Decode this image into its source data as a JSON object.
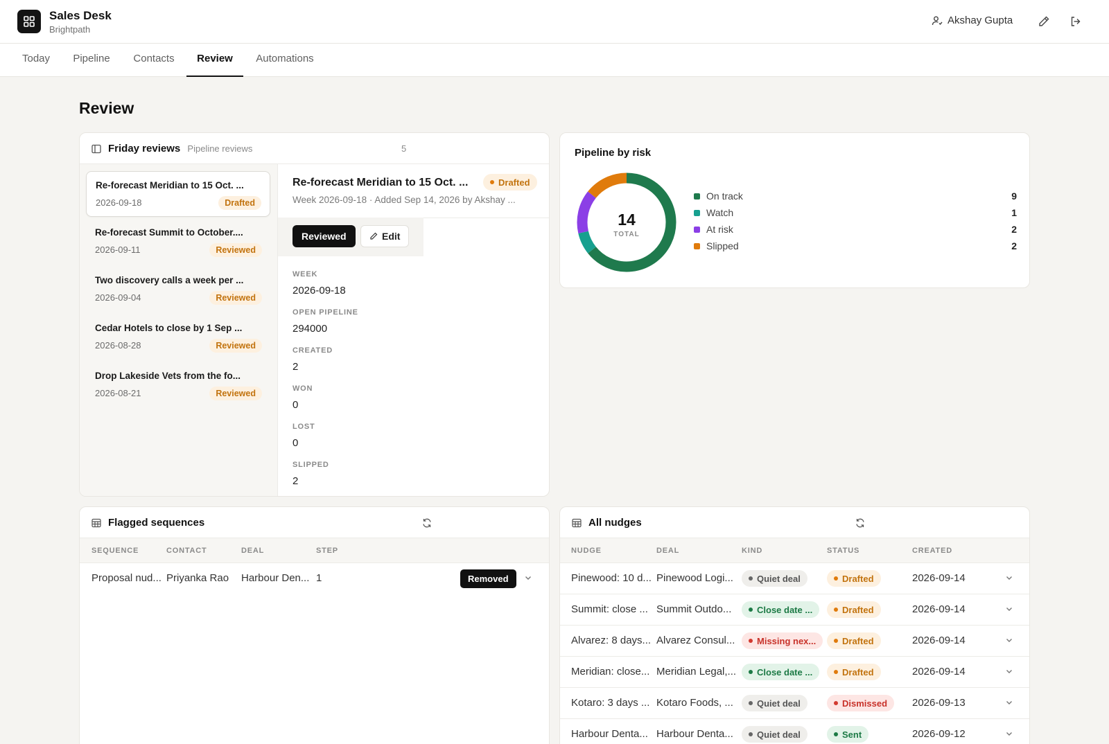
{
  "app": {
    "title": "Sales Desk",
    "subtitle": "Brightpath"
  },
  "user": {
    "name": "Akshay Gupta"
  },
  "tabs": [
    {
      "label": "Today"
    },
    {
      "label": "Pipeline"
    },
    {
      "label": "Contacts"
    },
    {
      "label": "Review",
      "active": true
    },
    {
      "label": "Automations"
    }
  ],
  "page": {
    "title": "Review"
  },
  "friday_reviews": {
    "title": "Friday reviews",
    "subtitle": "Pipeline reviews",
    "count": "5",
    "items": [
      {
        "title": "Re-forecast Meridian to 15 Oct. ...",
        "date": "2026-09-18",
        "status": "Drafted"
      },
      {
        "title": "Re-forecast Summit to October....",
        "date": "2026-09-11",
        "status": "Reviewed"
      },
      {
        "title": "Two discovery calls a week per ...",
        "date": "2026-09-04",
        "status": "Reviewed"
      },
      {
        "title": "Cedar Hotels to close by 1 Sep ...",
        "date": "2026-08-28",
        "status": "Reviewed"
      },
      {
        "title": "Drop Lakeside Vets from the fo...",
        "date": "2026-08-21",
        "status": "Reviewed"
      }
    ],
    "detail": {
      "title": "Re-forecast Meridian to 15 Oct. ...",
      "status": "Drafted",
      "subtitle": "Week 2026-09-18  ·  Added Sep 14, 2026 by Akshay ...",
      "reviewed_label": "Reviewed",
      "edit_label": "Edit",
      "fields": [
        {
          "label": "WEEK",
          "value": "2026-09-18"
        },
        {
          "label": "OPEN PIPELINE",
          "value": "294000"
        },
        {
          "label": "CREATED",
          "value": "2"
        },
        {
          "label": "WON",
          "value": "0"
        },
        {
          "label": "LOST",
          "value": "0"
        },
        {
          "label": "SLIPPED",
          "value": "2"
        }
      ]
    }
  },
  "pipeline_risk": {
    "title": "Pipeline by risk",
    "total": "14",
    "total_label": "TOTAL",
    "segments": [
      {
        "label": "On track",
        "value": 9,
        "color": "#1f7a4d"
      },
      {
        "label": "Watch",
        "value": 1,
        "color": "#17a08f"
      },
      {
        "label": "At risk",
        "value": 2,
        "color": "#8b3fe6"
      },
      {
        "label": "Slipped",
        "value": 2,
        "color": "#e07b0c"
      }
    ]
  },
  "flagged": {
    "title": "Flagged sequences",
    "columns": [
      "SEQUENCE",
      "CONTACT",
      "DEAL",
      "STEP"
    ],
    "rows": [
      {
        "sequence": "Proposal nud...",
        "contact": "Priyanka Rao",
        "deal": "Harbour Den...",
        "step": "1",
        "status": "Removed"
      }
    ]
  },
  "nudges": {
    "title": "All nudges",
    "columns": [
      "NUDGE",
      "DEAL",
      "KIND",
      "STATUS",
      "CREATED"
    ],
    "rows": [
      {
        "nudge": "Pinewood: 10 d...",
        "deal": "Pinewood Logi...",
        "kind": "Quiet deal",
        "kind_tone": "gray",
        "status": "Drafted",
        "status_tone": "orange",
        "created": "2026-09-14"
      },
      {
        "nudge": "Summit: close ...",
        "deal": "Summit Outdo...",
        "kind": "Close date ...",
        "kind_tone": "green",
        "status": "Drafted",
        "status_tone": "orange",
        "created": "2026-09-14"
      },
      {
        "nudge": "Alvarez: 8 days...",
        "deal": "Alvarez Consul...",
        "kind": "Missing nex...",
        "kind_tone": "red",
        "status": "Drafted",
        "status_tone": "orange",
        "created": "2026-09-14"
      },
      {
        "nudge": "Meridian: close...",
        "deal": "Meridian Legal,...",
        "kind": "Close date ...",
        "kind_tone": "green",
        "status": "Drafted",
        "status_tone": "orange",
        "created": "2026-09-14"
      },
      {
        "nudge": "Kotaro: 3 days ...",
        "deal": "Kotaro Foods, ...",
        "kind": "Quiet deal",
        "kind_tone": "gray",
        "status": "Dismissed",
        "status_tone": "red",
        "created": "2026-09-13"
      },
      {
        "nudge": "Harbour Denta...",
        "deal": "Harbour Denta...",
        "kind": "Quiet deal",
        "kind_tone": "gray",
        "status": "Sent",
        "status_tone": "green",
        "created": "2026-09-12"
      }
    ]
  },
  "tones": {
    "gray": {
      "bg": "#efeeeb",
      "fg": "#555555",
      "dot": "#666666"
    },
    "green": {
      "bg": "#e2f3e8",
      "fg": "#1c7a45",
      "dot": "#1c7a45"
    },
    "red": {
      "bg": "#fde6e4",
      "fg": "#c8322a",
      "dot": "#d23a30"
    },
    "orange": {
      "bg": "#fdf0df",
      "fg": "#c2730e",
      "dot": "#e07b0c"
    }
  }
}
